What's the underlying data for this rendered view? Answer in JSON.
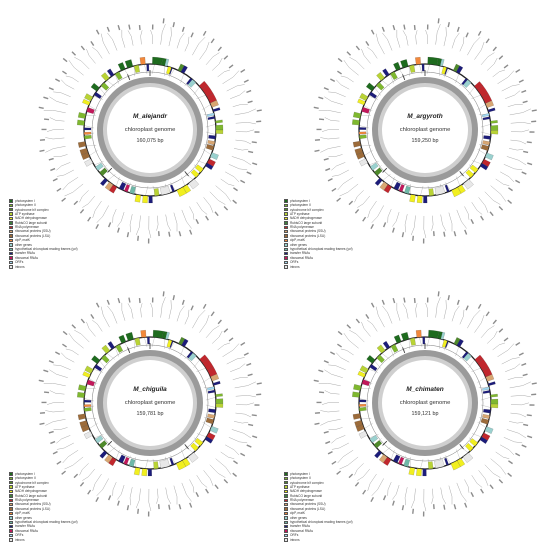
{
  "panels": [
    {
      "name": "M_alejandr",
      "subtitle": "chloroplast genome",
      "size": "160,075 bp"
    },
    {
      "name": "M_argyroth",
      "subtitle": "chloroplast genome",
      "size": "159,250 bp"
    },
    {
      "name": "M_chiguila",
      "subtitle": "chloroplast genome",
      "size": "159,781 bp"
    },
    {
      "name": "M_chimaten",
      "subtitle": "chloroplast genome",
      "size": "159,121 bp"
    }
  ],
  "legend": [
    {
      "label": "photosystem I",
      "color": "#1e6b1e"
    },
    {
      "label": "photosystem II",
      "color": "#7fb82f"
    },
    {
      "label": "cytochrome b/f complex",
      "color": "#4f8a2b"
    },
    {
      "label": "ATP synthase",
      "color": "#b9d335"
    },
    {
      "label": "NADH dehydrogenase",
      "color": "#f1ef1f"
    },
    {
      "label": "RubisCO large subunit",
      "color": "#3e7f3e"
    },
    {
      "label": "RNA polymerase",
      "color": "#c1272d"
    },
    {
      "label": "ribosomal proteins (SSU)",
      "color": "#d8a672"
    },
    {
      "label": "ribosomal proteins (LSU)",
      "color": "#9c6b3a"
    },
    {
      "label": "clpP, matK",
      "color": "#f2883b"
    },
    {
      "label": "other genes",
      "color": "#9ad1cf"
    },
    {
      "label": "hypothetical chloroplast reading frames (ycf)",
      "color": "#6fb8a8"
    },
    {
      "label": "transfer RNAs",
      "color": "#1c1c7a"
    },
    {
      "label": "ribosomal RNAs",
      "color": "#c2185b"
    },
    {
      "label": "ORFs",
      "color": "#a0d7f0"
    },
    {
      "label": "introns",
      "color": "#e8e8e8"
    }
  ],
  "colors": {
    "gc_inner": "#cfcfcf",
    "gc_outer": "#9a9a9a",
    "ring": "#222222"
  }
}
